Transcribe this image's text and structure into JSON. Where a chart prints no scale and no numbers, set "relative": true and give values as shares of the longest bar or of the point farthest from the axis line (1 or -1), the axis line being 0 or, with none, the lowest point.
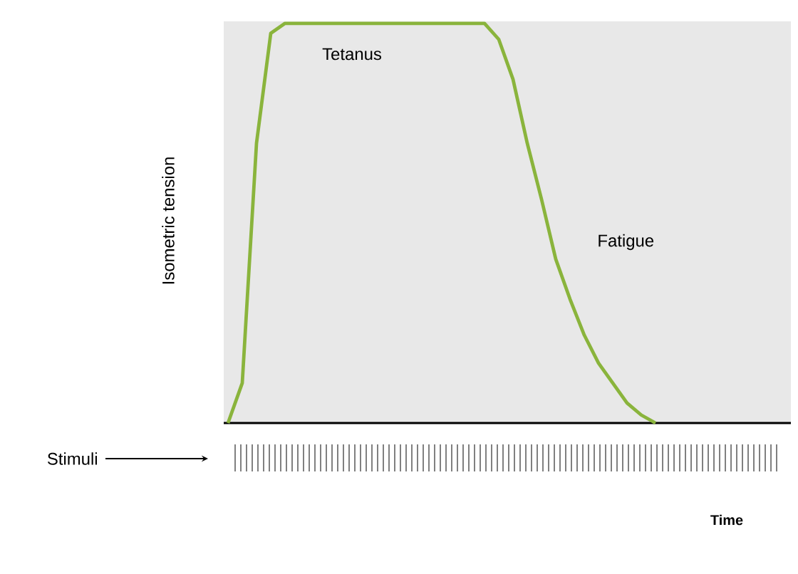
{
  "chart_data": {
    "type": "line",
    "relative": true,
    "ylabel": "Isometric tension",
    "categories": [
      null,
      null,
      null,
      null,
      null,
      null,
      null,
      null,
      null,
      null,
      null,
      null,
      null,
      null,
      null,
      null,
      null,
      null,
      null,
      null,
      null,
      null,
      null,
      null,
      null,
      null,
      null,
      null,
      null,
      null,
      null,
      null,
      null,
      null,
      null,
      null,
      null,
      null,
      null,
      null
    ],
    "series": [
      {
        "color": "#8ab43c",
        "values": [
          0,
          0.1,
          0.7,
          0.975,
          1,
          1,
          1,
          1,
          1,
          1,
          1,
          1,
          1,
          1,
          1,
          1,
          1,
          1,
          1,
          0.96,
          0.86,
          0.7,
          0.56,
          0.41,
          0.31,
          0.22,
          0.15,
          0.1,
          0.05,
          0.02,
          0,
          null,
          null,
          null,
          null,
          null,
          null,
          null,
          null,
          null
        ]
      }
    ],
    "annotations": [
      "Tetanus",
      "Fatigue",
      "Stimuli",
      "Time"
    ]
  }
}
